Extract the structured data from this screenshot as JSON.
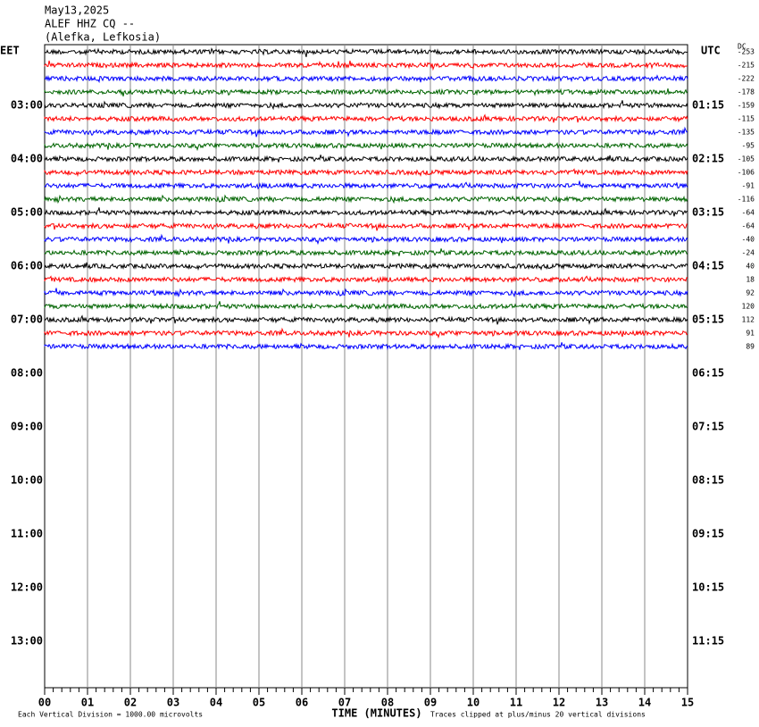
{
  "header": {
    "date": "May13,2025",
    "station": "ALEF HHZ CQ --",
    "location": "(Alefka, Lefkosia)"
  },
  "left_axis": {
    "title": "EET",
    "labels": [
      "03:00",
      "04:00",
      "05:00",
      "06:00",
      "07:00",
      "08:00",
      "09:00",
      "10:00",
      "11:00",
      "12:00",
      "13:00"
    ]
  },
  "right_axis": {
    "title": "UTC",
    "labels": [
      "01:15",
      "02:15",
      "03:15",
      "04:15",
      "05:15",
      "06:15",
      "07:15",
      "08:15",
      "09:15",
      "10:15",
      "11:15"
    ]
  },
  "dc": {
    "title": "DC",
    "offsets": [
      -253,
      -215,
      -222,
      -178,
      -159,
      -115,
      -135,
      -95,
      -105,
      -106,
      -91,
      -116,
      -64,
      -64,
      -40,
      -24,
      40,
      18,
      92,
      120,
      112,
      91,
      89
    ]
  },
  "trace_colors": [
    "#000000",
    "#ff0000",
    "#0000ff",
    "#006400"
  ],
  "x_axis": {
    "title": "TIME (MINUTES)",
    "labels": [
      "00",
      "01",
      "02",
      "03",
      "04",
      "05",
      "06",
      "07",
      "08",
      "09",
      "10",
      "11",
      "12",
      "13",
      "14",
      "15"
    ]
  },
  "footer": {
    "scale": "Each Vertical Division = 1000.00 microvolts",
    "clip": "Traces clipped at plus/minus 20 vertical divisions"
  }
}
